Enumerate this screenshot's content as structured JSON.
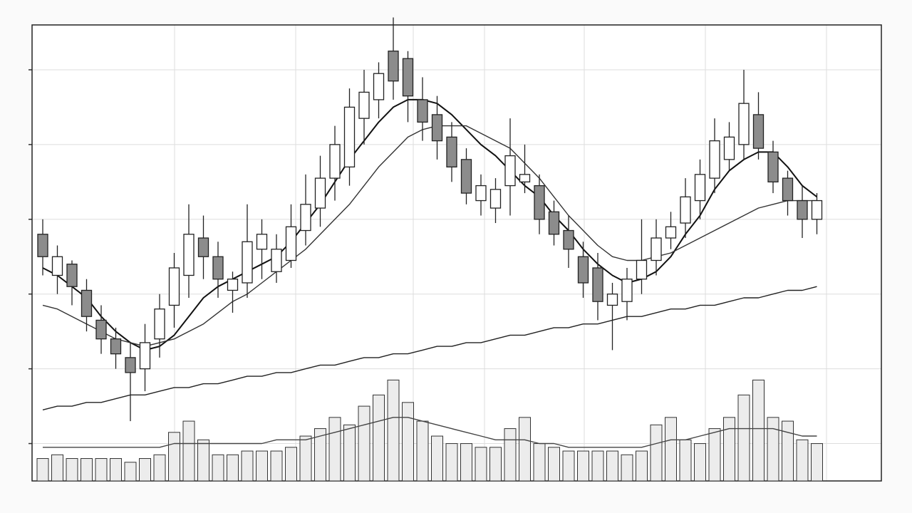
{
  "chart_data": {
    "type": "candlestick",
    "categories": [
      null,
      null,
      null,
      null,
      null,
      null,
      null,
      null,
      null,
      null,
      null,
      null,
      null,
      null,
      null,
      null,
      null,
      null,
      null,
      null,
      null,
      null,
      null,
      null,
      null,
      null,
      null,
      null,
      null,
      null,
      null,
      null,
      null,
      null,
      null,
      null,
      null,
      null,
      null,
      null,
      null,
      null,
      null,
      null,
      null,
      null,
      null,
      null,
      null,
      null,
      null,
      null,
      null,
      null
    ],
    "open": [
      66,
      55,
      58,
      51,
      43,
      38,
      33,
      30,
      38,
      47,
      55,
      65,
      60,
      51,
      53,
      62,
      56,
      59,
      67,
      73,
      81,
      84,
      97,
      102,
      115,
      113,
      102,
      98,
      92,
      86,
      75,
      73,
      79,
      80,
      79,
      72,
      67,
      60,
      57,
      47,
      48,
      54,
      59,
      65,
      69,
      75,
      81,
      86,
      90,
      98,
      88,
      81,
      75,
      70
    ],
    "high": [
      70,
      63,
      59,
      54,
      47,
      41,
      37,
      42,
      50,
      61,
      74,
      71,
      64,
      56,
      74,
      70,
      66,
      74,
      82,
      87,
      95,
      105,
      110,
      112,
      124,
      115,
      108,
      103,
      96,
      89,
      82,
      81,
      97,
      90,
      82,
      75,
      71,
      64,
      61,
      53,
      57,
      70,
      70,
      72,
      81,
      86,
      97,
      96,
      110,
      104,
      91,
      83,
      79,
      77
    ],
    "low": [
      55,
      50,
      47,
      40,
      34,
      30,
      16,
      24,
      33,
      41,
      49,
      54,
      49,
      45,
      49,
      54,
      53,
      57,
      63,
      68,
      75,
      79,
      90,
      97,
      102,
      96,
      91,
      86,
      80,
      74,
      71,
      69,
      71,
      77,
      66,
      63,
      57,
      49,
      43,
      35,
      43,
      50,
      55,
      62,
      65,
      70,
      77,
      83,
      86,
      86,
      77,
      71,
      65,
      66
    ],
    "close": [
      60,
      60,
      52,
      44,
      38,
      34,
      29,
      37,
      46,
      57,
      66,
      60,
      54,
      54,
      64,
      66,
      62,
      68,
      74,
      81,
      90,
      100,
      104,
      109,
      107,
      103,
      96,
      91,
      84,
      77,
      79,
      78,
      87,
      82,
      70,
      66,
      62,
      53,
      48,
      50,
      54,
      59,
      65,
      68,
      76,
      82,
      91,
      92,
      101,
      89,
      80,
      75,
      70,
      75
    ],
    "up_color": "#ffffff",
    "down_color": "#8c8c8c",
    "volume": {
      "color": "#ececec",
      "axis": "y2",
      "values": [
        6,
        7,
        6,
        6,
        6,
        6,
        5,
        6,
        7,
        13,
        16,
        11,
        7,
        7,
        8,
        8,
        8,
        9,
        12,
        14,
        17,
        15,
        20,
        23,
        27,
        21,
        16,
        12,
        10,
        10,
        9,
        9,
        14,
        17,
        10,
        9,
        8,
        8,
        8,
        8,
        7,
        8,
        15,
        17,
        11,
        10,
        14,
        17,
        23,
        27,
        17,
        16,
        11,
        10
      ]
    },
    "series": [
      {
        "color": "#111111",
        "values": [
          57,
          55,
          52,
          49,
          44,
          40,
          37,
          35,
          36,
          39,
          44,
          49,
          52,
          54,
          56,
          58,
          60,
          64,
          69,
          74,
          80,
          86,
          91,
          96,
          100,
          102,
          102,
          101,
          98,
          94,
          90,
          87,
          83,
          79,
          76,
          71,
          67,
          62,
          58,
          55,
          53,
          54,
          56,
          60,
          66,
          71,
          78,
          83,
          86,
          88,
          88,
          84,
          79,
          76
        ]
      },
      {
        "color": "#333333",
        "values": [
          47,
          46,
          44,
          42,
          40,
          38,
          37,
          36,
          37,
          38,
          40,
          42,
          45,
          48,
          50,
          53,
          56,
          59,
          62,
          66,
          70,
          74,
          79,
          84,
          88,
          92,
          94,
          95,
          95,
          95,
          93,
          91,
          89,
          85,
          81,
          76,
          71,
          67,
          63,
          60,
          59,
          59,
          60,
          61,
          63,
          65,
          67,
          69,
          71,
          73,
          74,
          75,
          75,
          75
        ]
      },
      {
        "color": "#222222",
        "values": [
          19,
          20,
          20,
          21,
          21,
          22,
          23,
          23,
          24,
          25,
          25,
          26,
          26,
          27,
          28,
          28,
          29,
          29,
          30,
          31,
          31,
          32,
          33,
          33,
          34,
          34,
          35,
          36,
          36,
          37,
          37,
          38,
          39,
          39,
          40,
          41,
          41,
          42,
          42,
          43,
          44,
          44,
          45,
          46,
          46,
          47,
          47,
          48,
          49,
          49,
          50,
          51,
          51,
          52
        ]
      },
      {
        "color": "#444444",
        "axis": "y2",
        "values": [
          9,
          9,
          9,
          9,
          9,
          9,
          9,
          9,
          9,
          10,
          10,
          10,
          10,
          10,
          10,
          10,
          11,
          11,
          11,
          12,
          13,
          14,
          15,
          16,
          17,
          17,
          16,
          15,
          14,
          13,
          12,
          11,
          11,
          11,
          10,
          10,
          9,
          9,
          9,
          9,
          9,
          9,
          10,
          11,
          11,
          12,
          13,
          14,
          14,
          14,
          14,
          13,
          12,
          12
        ]
      }
    ],
    "ylim": [
      0,
      122
    ],
    "yticks": [
      10,
      30,
      50,
      70,
      90,
      110
    ],
    "y2lim": [
      0,
      122
    ],
    "grid": true
  }
}
